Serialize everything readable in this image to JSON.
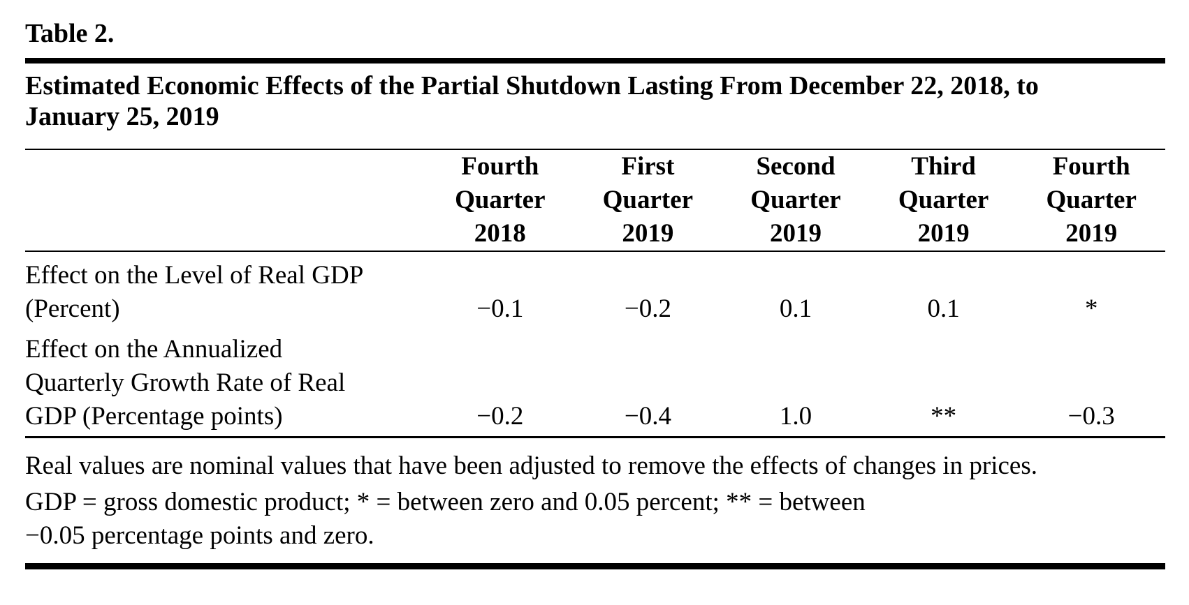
{
  "page": {
    "label": "Table 2.",
    "title_lines": [
      "Estimated Economic Effects of the Partial Shutdown Lasting From December 22, 2018, to",
      "January 25, 2019"
    ]
  },
  "table": {
    "columns": [
      {
        "lines": [
          "Fourth",
          "Quarter",
          "2018"
        ]
      },
      {
        "lines": [
          "First",
          "Quarter",
          "2019"
        ]
      },
      {
        "lines": [
          "Second",
          "Quarter",
          "2019"
        ]
      },
      {
        "lines": [
          "Third",
          "Quarter",
          "2019"
        ]
      },
      {
        "lines": [
          "Fourth",
          "Quarter",
          "2019"
        ]
      }
    ],
    "rows": [
      {
        "label_lines": [
          "Effect on the Level of Real GDP",
          "(Percent)"
        ],
        "values": [
          "−0.1",
          "−0.2",
          "0.1",
          "0.1",
          "*"
        ]
      },
      {
        "label_lines": [
          "Effect on the Annualized",
          "Quarterly Growth Rate of Real",
          "GDP (Percentage points)"
        ],
        "values": [
          "−0.2",
          "−0.4",
          "1.0",
          "**",
          "−0.3"
        ]
      }
    ]
  },
  "notes": {
    "note1": "Real values are nominal values that have been adjusted to remove the effects of changes in prices.",
    "note2_lines": [
      "GDP = gross domestic product; * = between zero and 0.05 percent; ** = between",
      "−0.05 percentage points and zero."
    ]
  },
  "colors": {
    "text": "#000000",
    "background": "#ffffff"
  }
}
